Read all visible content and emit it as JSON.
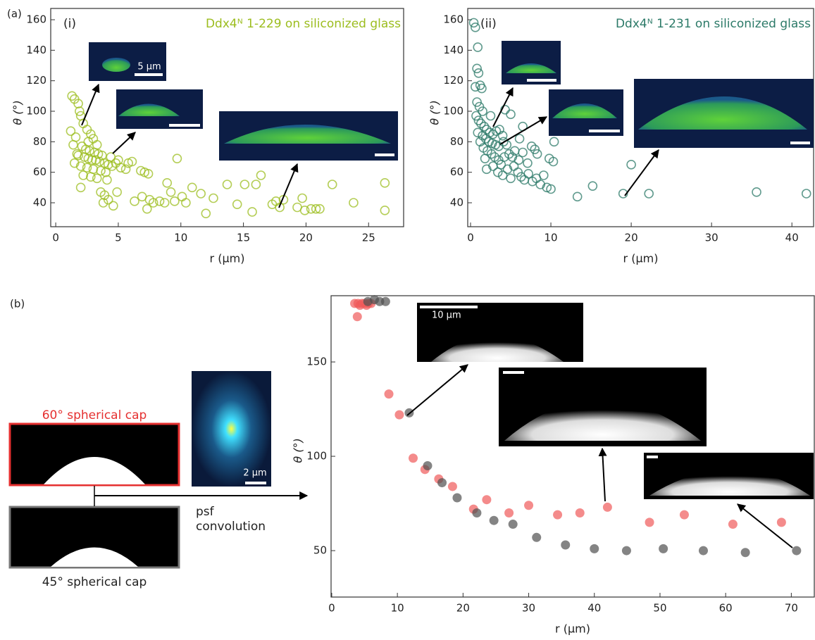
{
  "panel_labels": [
    "(a)",
    "(b)"
  ],
  "schematic": {
    "top_label": "60° spherical cap",
    "bottom_label": "45° spherical cap",
    "arrow_label": [
      "psf",
      "convolution"
    ],
    "psf_scale": "2 µm"
  },
  "chart_data": [
    {
      "type": "scatter",
      "subtitle": "(i)",
      "title": "Ddx4ᴺ 1-229 on siliconized glass",
      "x_label": "r (μm)",
      "y_label": "θ (°)",
      "marker": "open",
      "scale_labels": [
        "5 µm"
      ],
      "xlim": [
        -0.4,
        27.8
      ],
      "xticks": [
        0,
        5,
        10,
        15,
        20,
        25
      ],
      "ylim": [
        24.3,
        167.4
      ],
      "yticks": [
        40,
        60,
        80,
        100,
        120,
        140,
        160
      ],
      "series": [
        {
          "color": "#9cbd1f",
          "x": [
            1.3,
            1.5,
            1.8,
            1.9,
            2.0,
            1.2,
            2.2,
            2.5,
            1.6,
            2.8,
            3.0,
            1.4,
            2.1,
            2.4,
            2.7,
            3.1,
            3.4,
            3.7,
            1.8,
            2.3,
            2.6,
            2.9,
            3.2,
            3.5,
            3.9,
            4.2,
            4.5,
            4.8,
            5.2,
            5.6,
            1.5,
            2.0,
            2.5,
            3.0,
            3.6,
            4.0,
            2.2,
            2.8,
            3.3,
            4.1,
            2.0,
            3.6,
            3.9,
            4.2,
            3.8,
            4.6,
            4.9,
            5.8,
            6.1,
            6.3,
            6.8,
            7.1,
            7.4,
            6.9,
            7.5,
            7.8,
            7.3,
            8.3,
            8.7,
            8.9,
            9.2,
            9.5,
            9.7,
            10.1,
            10.4,
            10.9,
            11.6,
            12.0,
            12.6,
            13.7,
            14.5,
            15.1,
            15.7,
            16.4,
            16.0,
            17.3,
            17.6,
            17.9,
            18.2,
            19.3,
            19.7,
            19.9,
            20.4,
            20.8,
            21.1,
            22.1,
            23.8,
            26.3,
            26.3,
            1.7,
            2.6,
            3.3,
            4.4,
            5.0
          ],
          "values": [
            110,
            108,
            105,
            100,
            97,
            87,
            92,
            88,
            83,
            85,
            82,
            78,
            77,
            75,
            74,
            73,
            72,
            71,
            71,
            70,
            69,
            68,
            68,
            67,
            66,
            65,
            64,
            66,
            63,
            62,
            66,
            64,
            63,
            62,
            61,
            60,
            58,
            57,
            56,
            55,
            50,
            47,
            45,
            42,
            40,
            38,
            47,
            66,
            67,
            41,
            61,
            60,
            59,
            44,
            42,
            40,
            36,
            41,
            40,
            53,
            47,
            41,
            69,
            44,
            40,
            50,
            46,
            33,
            43,
            52,
            39,
            52,
            34,
            58,
            52,
            39,
            41,
            37,
            42,
            37,
            43,
            35,
            36,
            36,
            36,
            52,
            40,
            53,
            35,
            72,
            80,
            78,
            70,
            68
          ]
        }
      ]
    },
    {
      "type": "scatter",
      "subtitle": "(ii)",
      "title": "Ddx4ᴺ 1-231 on siliconized glass",
      "x_label": "r (μm)",
      "y_label": "θ (°)",
      "marker": "open",
      "xlim": [
        -0.35,
        42.7
      ],
      "xticks": [
        0,
        10,
        20,
        30,
        40
      ],
      "ylim": [
        24.3,
        167.4
      ],
      "yticks": [
        40,
        60,
        80,
        100,
        120,
        140,
        160
      ],
      "series": [
        {
          "color": "#2c7a68",
          "x": [
            0.4,
            0.6,
            0.9,
            0.8,
            1.0,
            0.6,
            1.2,
            1.4,
            0.8,
            1.1,
            1.5,
            0.7,
            1.0,
            1.3,
            1.7,
            2.0,
            2.4,
            2.8,
            3.2,
            3.6,
            4.0,
            1.5,
            1.9,
            2.3,
            2.7,
            3.1,
            3.5,
            4.1,
            4.5,
            1.2,
            1.6,
            2.1,
            2.6,
            3.0,
            3.5,
            4.2,
            4.8,
            5.2,
            5.5,
            6.0,
            6.5,
            7.1,
            7.6,
            8.0,
            8.3,
            2.0,
            2.8,
            3.4,
            4.0,
            4.6,
            5.0,
            5.4,
            5.9,
            6.3,
            6.7,
            7.2,
            7.7,
            8.2,
            8.7,
            9.1,
            9.5,
            10.0,
            10.3,
            10.4,
            9.8,
            4.3,
            5.0,
            2.5,
            6.1,
            13.3,
            15.2,
            19.0,
            20.0,
            22.2,
            35.6,
            41.8,
            1.8,
            3.8,
            0.9,
            6.5
          ],
          "values": [
            158,
            155,
            142,
            128,
            125,
            116,
            117,
            115,
            106,
            103,
            100,
            97,
            94,
            92,
            90,
            88,
            86,
            85,
            87,
            88,
            84,
            84,
            82,
            80,
            79,
            78,
            77,
            80,
            78,
            80,
            76,
            74,
            72,
            70,
            68,
            70,
            72,
            70,
            74,
            68,
            73,
            66,
            77,
            75,
            72,
            62,
            64,
            60,
            58,
            62,
            56,
            64,
            60,
            57,
            55,
            59,
            54,
            56,
            52,
            58,
            50,
            49,
            67,
            80,
            69,
            101,
            98,
            97,
            82,
            44,
            51,
            46,
            65,
            46,
            47,
            46,
            69,
            65,
            86,
            90
          ]
        }
      ]
    },
    {
      "type": "scatter",
      "x_label": "r (μm)",
      "y_label": "θ (°)",
      "marker": "filled",
      "scale_labels": [
        "10 µm"
      ],
      "xlim": [
        -0.1,
        73.5
      ],
      "xticks": [
        0,
        10,
        20,
        30,
        40,
        50,
        60,
        70
      ],
      "ylim": [
        25.4,
        185.1
      ],
      "yticks": [
        50,
        100,
        150
      ],
      "series": [
        {
          "color": "#f05a5a",
          "x": [
            3.5,
            4.0,
            4.3,
            4.6,
            5.0,
            5.3,
            5.6,
            6.0,
            3.9,
            8.7,
            10.3,
            12.4,
            14.2,
            16.3,
            18.4,
            21.6,
            23.6,
            27.0,
            30.0,
            34.4,
            37.8,
            42.0,
            48.4,
            53.7,
            61.1,
            68.5
          ],
          "values": [
            181,
            181,
            180,
            181,
            181,
            180,
            181,
            181,
            174,
            133,
            122,
            99,
            93,
            88,
            84,
            72,
            77,
            70,
            74,
            69,
            70,
            73,
            65,
            69,
            64,
            65
          ]
        },
        {
          "color": "#505050",
          "x": [
            5.5,
            6.5,
            7.3,
            8.2,
            11.8,
            14.6,
            16.8,
            19.1,
            22.1,
            24.7,
            27.6,
            31.2,
            35.6,
            40.0,
            44.9,
            50.5,
            56.6,
            63.0,
            70.8
          ],
          "values": [
            182,
            183,
            182,
            182,
            123,
            95,
            86,
            78,
            70,
            66,
            64,
            57,
            53,
            51,
            50,
            51,
            50,
            49,
            50
          ]
        }
      ]
    }
  ]
}
